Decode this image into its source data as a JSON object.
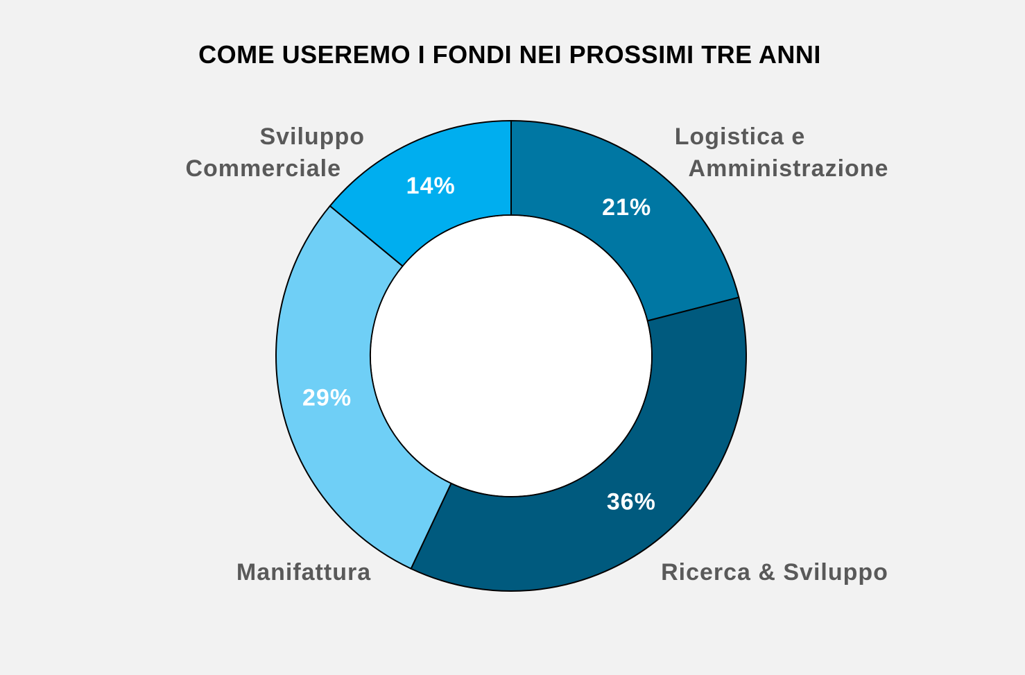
{
  "chart_data": {
    "type": "pie",
    "variant": "donut",
    "title": "COME USEREMO I FONDI NEI PROSSIMI TRE ANNI",
    "slices": [
      {
        "label": [
          "Logistica e",
          "Amministrazione"
        ],
        "value": 21,
        "value_label": "21%",
        "color": "#0077a3"
      },
      {
        "label": [
          "Ricerca & Sviluppo"
        ],
        "value": 36,
        "value_label": "36%",
        "color": "#005a7e"
      },
      {
        "label": [
          "Manifattura"
        ],
        "value": 29,
        "value_label": "29%",
        "color": "#6fcff6"
      },
      {
        "label": [
          "Sviluppo",
          "Commerciale"
        ],
        "value": 14,
        "value_label": "14%",
        "color": "#00aeef"
      }
    ],
    "start_angle": "12 o'clock",
    "direction": "clockwise",
    "legend": "none",
    "label_color": "#595959",
    "value_label_color": "#ffffff",
    "background": "#f2f2f2"
  }
}
